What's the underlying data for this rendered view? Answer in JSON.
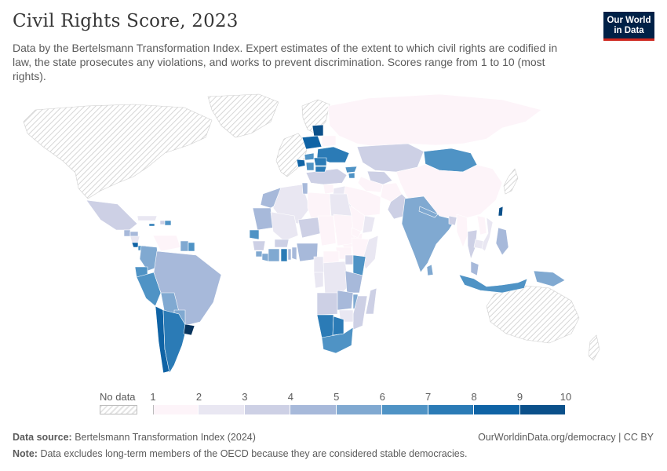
{
  "header": {
    "title": "Civil Rights Score, 2023",
    "subtitle": "Data by the Bertelsmann Transformation Index. Expert estimates of the extent to which civil rights are codified in law, the state prosecutes any violations, and works to prevent discrimination. Scores range from 1 to 10 (most rights).",
    "logo_line1": "Our World",
    "logo_line2": "in Data"
  },
  "legend": {
    "no_data_label": "No data",
    "ticks": [
      "1",
      "2",
      "3",
      "4",
      "5",
      "6",
      "7",
      "8",
      "9",
      "10"
    ],
    "colors": [
      "#fdf4f9",
      "#e9e7f2",
      "#cdd0e5",
      "#a7b9da",
      "#80a9d1",
      "#4f93c5",
      "#2b7bb6",
      "#0f63a5",
      "#0b508a",
      "#08345d"
    ],
    "no_data_color": "#e3e3e3"
  },
  "map_data": {
    "type": "choropleth",
    "legend_placement": "bottom",
    "land_no_data_regions": [
      "North America (US, Canada)",
      "Greenland",
      "Western Europe",
      "Australia",
      "Japan",
      "Korea (South)",
      "New Zealand"
    ],
    "regions": [
      {
        "name": "Mexico",
        "score": 3
      },
      {
        "name": "Guatemala",
        "score": 4
      },
      {
        "name": "Honduras",
        "score": 4
      },
      {
        "name": "Nicaragua",
        "score": 2
      },
      {
        "name": "Costa Rica",
        "score": 8
      },
      {
        "name": "Panama",
        "score": 6
      },
      {
        "name": "Cuba",
        "score": 2
      },
      {
        "name": "Haiti",
        "score": 3
      },
      {
        "name": "Dominican Republic",
        "score": 6
      },
      {
        "name": "Jamaica",
        "score": 7
      },
      {
        "name": "Venezuela",
        "score": 1
      },
      {
        "name": "Colombia",
        "score": 5
      },
      {
        "name": "Ecuador",
        "score": 6
      },
      {
        "name": "Peru",
        "score": 6
      },
      {
        "name": "Brazil",
        "score": 4
      },
      {
        "name": "Bolivia",
        "score": 5
      },
      {
        "name": "Paraguay",
        "score": 5
      },
      {
        "name": "Argentina",
        "score": 7
      },
      {
        "name": "Chile",
        "score": 8
      },
      {
        "name": "Uruguay",
        "score": 10
      },
      {
        "name": "Guyana",
        "score": 5
      },
      {
        "name": "Suriname",
        "score": 6
      },
      {
        "name": "Mongolia",
        "score": 6
      },
      {
        "name": "China",
        "score": 1
      },
      {
        "name": "Russia",
        "score": 1
      },
      {
        "name": "Kazakhstan",
        "score": 3
      },
      {
        "name": "Uzbekistan",
        "score": 3
      },
      {
        "name": "Turkmenistan",
        "score": 1
      },
      {
        "name": "Afghanistan",
        "score": 1
      },
      {
        "name": "Iran",
        "score": 1
      },
      {
        "name": "Iraq",
        "score": 2
      },
      {
        "name": "Saudi Arabia",
        "score": 1
      },
      {
        "name": "Yemen",
        "score": 1
      },
      {
        "name": "Oman",
        "score": 2
      },
      {
        "name": "India",
        "score": 5
      },
      {
        "name": "Pakistan",
        "score": 3
      },
      {
        "name": "Bangladesh",
        "score": 3
      },
      {
        "name": "Nepal",
        "score": 5
      },
      {
        "name": "Sri Lanka",
        "score": 5
      },
      {
        "name": "Myanmar",
        "score": 1
      },
      {
        "name": "Thailand",
        "score": 3
      },
      {
        "name": "Vietnam",
        "score": 2
      },
      {
        "name": "Laos",
        "score": 1
      },
      {
        "name": "Cambodia",
        "score": 2
      },
      {
        "name": "Malaysia",
        "score": 4
      },
      {
        "name": "Indonesia",
        "score": 6
      },
      {
        "name": "Philippines",
        "score": 4
      },
      {
        "name": "Papua New Guinea",
        "score": 5
      },
      {
        "name": "Taiwan",
        "score": 9
      },
      {
        "name": "Poland",
        "score": 8
      },
      {
        "name": "Baltic States",
        "score": 9
      },
      {
        "name": "Ukraine",
        "score": 7
      },
      {
        "name": "Belarus",
        "score": 1
      },
      {
        "name": "Romania",
        "score": 7
      },
      {
        "name": "Bulgaria",
        "score": 7
      },
      {
        "name": "Hungary",
        "score": 6
      },
      {
        "name": "Serbia",
        "score": 6
      },
      {
        "name": "Croatia",
        "score": 8
      },
      {
        "name": "Georgia",
        "score": 6
      },
      {
        "name": "Armenia",
        "score": 6
      },
      {
        "name": "Turkey",
        "score": 3
      },
      {
        "name": "Syria",
        "score": 1
      },
      {
        "name": "Egypt",
        "score": 2
      },
      {
        "name": "Libya",
        "score": 1
      },
      {
        "name": "Algeria",
        "score": 2
      },
      {
        "name": "Morocco",
        "score": 4
      },
      {
        "name": "Tunisia",
        "score": 4
      },
      {
        "name": "Mauritania",
        "score": 4
      },
      {
        "name": "Mali",
        "score": 2
      },
      {
        "name": "Niger",
        "score": 3
      },
      {
        "name": "Chad",
        "score": 1
      },
      {
        "name": "Sudan",
        "score": 1
      },
      {
        "name": "South Sudan",
        "score": 1
      },
      {
        "name": "Ethiopia",
        "score": 1
      },
      {
        "name": "Eritrea",
        "score": 1
      },
      {
        "name": "Somalia",
        "score": 2
      },
      {
        "name": "Kenya",
        "score": 6
      },
      {
        "name": "Uganda",
        "score": 3
      },
      {
        "name": "Tanzania",
        "score": 4
      },
      {
        "name": "DR Congo",
        "score": 2
      },
      {
        "name": "Congo",
        "score": 2
      },
      {
        "name": "Cameroon",
        "score": 2
      },
      {
        "name": "Central African Republic",
        "score": 1
      },
      {
        "name": "Nigeria",
        "score": 4
      },
      {
        "name": "Senegal",
        "score": 6
      },
      {
        "name": "Guinea",
        "score": 3
      },
      {
        "name": "Sierra Leone",
        "score": 5
      },
      {
        "name": "Liberia",
        "score": 5
      },
      {
        "name": "Ivory Coast",
        "score": 5
      },
      {
        "name": "Ghana",
        "score": 7
      },
      {
        "name": "Burkina Faso",
        "score": 3
      },
      {
        "name": "Togo",
        "score": 4
      },
      {
        "name": "Benin",
        "score": 4
      },
      {
        "name": "Angola",
        "score": 3
      },
      {
        "name": "Zambia",
        "score": 4
      },
      {
        "name": "Malawi",
        "score": 5
      },
      {
        "name": "Mozambique",
        "score": 3
      },
      {
        "name": "Zimbabwe",
        "score": 2
      },
      {
        "name": "Namibia",
        "score": 7
      },
      {
        "name": "Botswana",
        "score": 7
      },
      {
        "name": "South Africa",
        "score": 6
      },
      {
        "name": "Madagascar",
        "score": 3
      }
    ]
  },
  "footer": {
    "source_label": "Data source:",
    "source_text": "Bertelsmann Transformation Index (2024)",
    "link": "OurWorldinData.org/democracy | CC BY",
    "note_label": "Note:",
    "note_text": "Data excludes long-term members of the OECD because they are considered stable democracies."
  }
}
